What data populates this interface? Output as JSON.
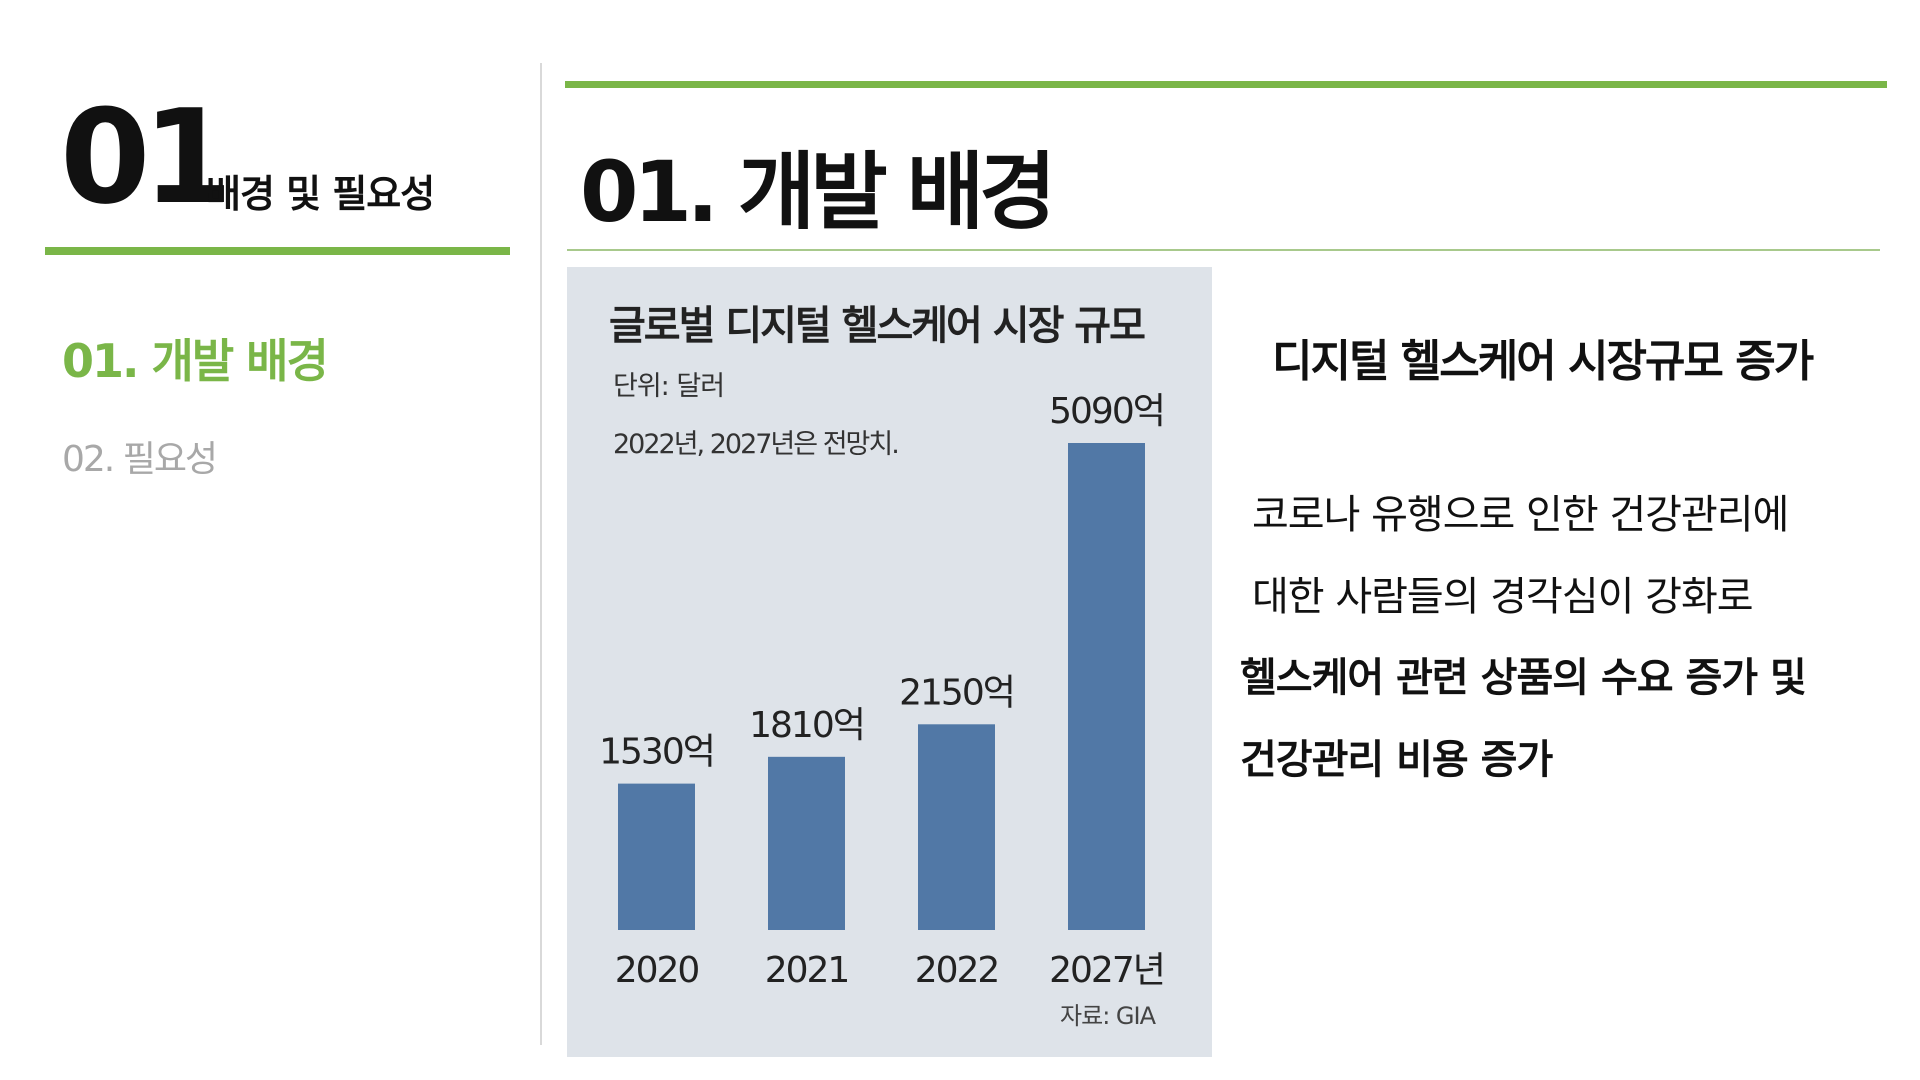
{
  "sidebar": {
    "section_number": "01",
    "section_name": "배경 및 필요성",
    "items": [
      {
        "label": "01. 개발 배경",
        "active": true
      },
      {
        "label": "02. 필요성",
        "active": false
      }
    ]
  },
  "header": {
    "title": "01. 개발 배경"
  },
  "chart_data": {
    "type": "bar",
    "title": "글로벌 디지털 헬스케어 시장 규모",
    "unit_note": "단위: 달러",
    "forecast_note": "2022년, 2027년은 전망치.",
    "categories": [
      "2020",
      "2021",
      "2022",
      "2027년"
    ],
    "values": [
      1530,
      1810,
      2150,
      5090
    ],
    "data_labels": [
      "1530억",
      "1810억",
      "2150억",
      "5090억"
    ],
    "source": "자료: GIA",
    "bar_color": "#5178a6",
    "background_color": "#dee3e9"
  },
  "content": {
    "heading": "디지털 헬스케어 시장규모 증가",
    "lines": [
      "코로나 유행으로 인한 건강관리에",
      "대한 사람들의 경각심이 강화로",
      "헬스케어 관련 상품의 수요 증가 및",
      "건강관리 비용 증가"
    ]
  },
  "colors": {
    "accent": "#7ab648",
    "muted_text": "#a8a8a8"
  }
}
